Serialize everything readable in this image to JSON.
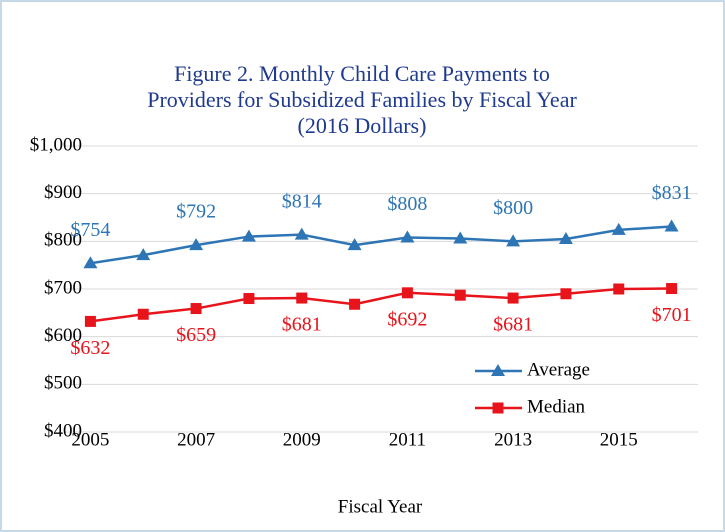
{
  "chart_data": {
    "type": "line",
    "title": [
      "Figure 2. Monthly Child Care Payments to",
      "Providers for Subsidized Families by Fiscal Year",
      "(2016 Dollars)"
    ],
    "x_label": "Fiscal Year",
    "x": [
      2005,
      2006,
      2007,
      2008,
      2009,
      2010,
      2011,
      2012,
      2013,
      2014,
      2015,
      2016
    ],
    "xlim": [
      2004.5,
      2016.5
    ],
    "xticks": [
      2005,
      2007,
      2009,
      2011,
      2013,
      2015
    ],
    "ylim": [
      400,
      1000
    ],
    "yticks": [
      {
        "value": 400,
        "label": "$400"
      },
      {
        "value": 500,
        "label": "$500"
      },
      {
        "value": 600,
        "label": "$600"
      },
      {
        "value": 700,
        "label": "$700"
      },
      {
        "value": 800,
        "label": "$800"
      },
      {
        "value": 900,
        "label": "$900"
      },
      {
        "value": 1000,
        "label": "$1,000"
      }
    ],
    "grid": true,
    "legend": "lower right",
    "series": [
      {
        "name": "Average",
        "color": "#2e75b6",
        "marker": "triangle",
        "values": [
          754,
          771,
          792,
          810,
          814,
          792,
          808,
          806,
          800,
          805,
          824,
          831
        ],
        "value_labels": [
          "$754",
          null,
          "$792",
          null,
          "$814",
          null,
          "$808",
          null,
          "$800",
          null,
          null,
          "$831"
        ]
      },
      {
        "name": "Median",
        "color": "#e8141b",
        "marker": "square",
        "values": [
          632,
          647,
          659,
          680,
          681,
          668,
          692,
          687,
          681,
          690,
          700,
          701
        ],
        "value_labels": [
          "$632",
          null,
          "$659",
          null,
          "$681",
          null,
          "$692",
          null,
          "$681",
          null,
          null,
          "$701"
        ]
      }
    ]
  }
}
